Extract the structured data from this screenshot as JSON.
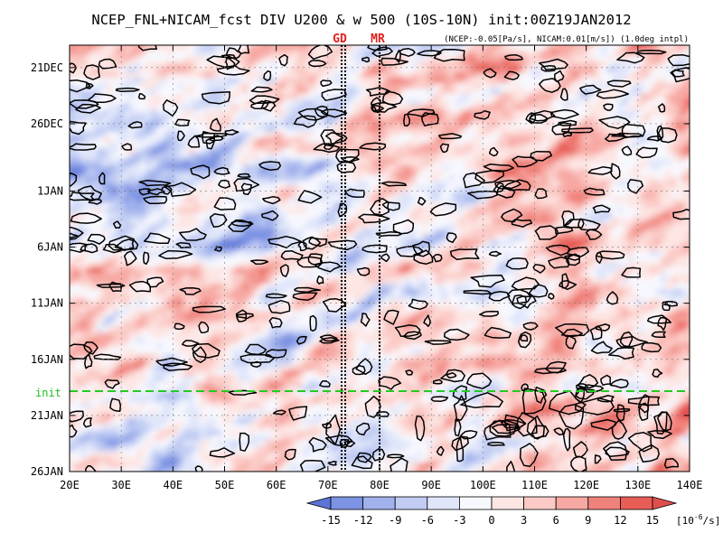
{
  "chart_data": {
    "type": "heatmap",
    "title": "NCEP_FNL+NICAM_fcst DIV U200 & w 500 (10S-10N) init:00Z19JAN2012",
    "subtitle": "(NCEP:-0.05[Pa/s], NICAM:0.01[m/s]) (1.0deg intpl)",
    "x_ticks": [
      "20E",
      "30E",
      "40E",
      "50E",
      "60E",
      "70E",
      "80E",
      "90E",
      "100E",
      "110E",
      "120E",
      "130E",
      "140E"
    ],
    "x_range": [
      20,
      140
    ],
    "y_ticks": [
      "21DEC",
      "26DEC",
      "1JAN",
      "6JAN",
      "11JAN",
      "16JAN",
      "21JAN",
      "26JAN"
    ],
    "y_range": [
      "19DEC2011",
      "26JAN2012"
    ],
    "markers": [
      {
        "label": "GD",
        "lon": 73,
        "style": "dotted-double"
      },
      {
        "label": "MR",
        "lon": 80,
        "style": "dotted"
      }
    ],
    "init_line": {
      "label": "init",
      "date": "19JAN2012",
      "color": "#22cc22"
    },
    "colorbar": {
      "tick_labels": [
        "-15",
        "-12",
        "-9",
        "-6",
        "-3",
        "0",
        "3",
        "6",
        "9",
        "12",
        "15"
      ],
      "unit": "[10",
      "unit_exp": "-6",
      "unit_tail": "/s]",
      "colors": [
        "#5b74d8",
        "#7d93e3",
        "#a0b1ec",
        "#c1ccf3",
        "#e0e6fa",
        "#f7f8fe",
        "#fde6e4",
        "#fbcac6",
        "#f7a8a3",
        "#f0827c",
        "#e85e57",
        "#e04e4e"
      ]
    },
    "grid": true,
    "contour_color": "#000000"
  }
}
